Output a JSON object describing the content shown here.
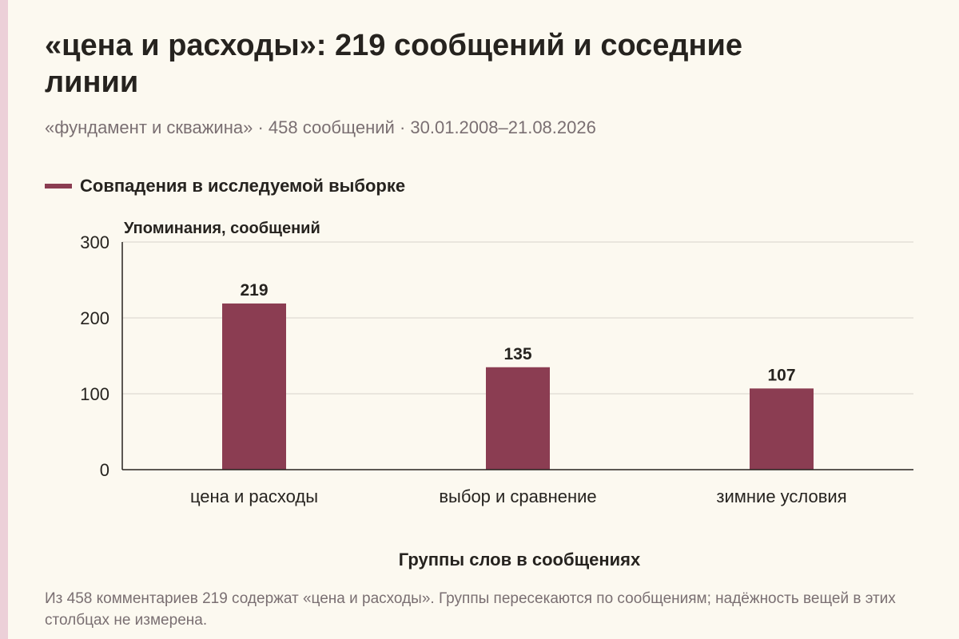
{
  "header": {
    "title": "«цена и расходы»: 219 сообщений и соседние линии",
    "subtitle": "«фундамент и скважина» · 458 сообщений · 30.01.2008–21.08.2026"
  },
  "legend": {
    "label": "Совпадения в исследуемой выборке",
    "color": "#8b3d52"
  },
  "chart_data": {
    "type": "bar",
    "categories": [
      "цена и расходы",
      "выбор и сравнение",
      "зимние условия"
    ],
    "series": [
      {
        "name": "Совпадения в исследуемой выборке",
        "values": [
          219,
          135,
          107
        ],
        "color": "#8b3d52"
      }
    ],
    "xlabel": "Группы слов в сообщениях",
    "ylabel": "Упоминания, сообщений",
    "ylim": [
      0,
      300
    ],
    "yticks": [
      0,
      100,
      200,
      300
    ],
    "grid": true,
    "legend_position": "top-left"
  },
  "footnote": "Из 458 комментариев 219 содержат «цена и расходы». Группы пересекаются по сообщениям; надёжность вещей в этих столбцах не измерена."
}
